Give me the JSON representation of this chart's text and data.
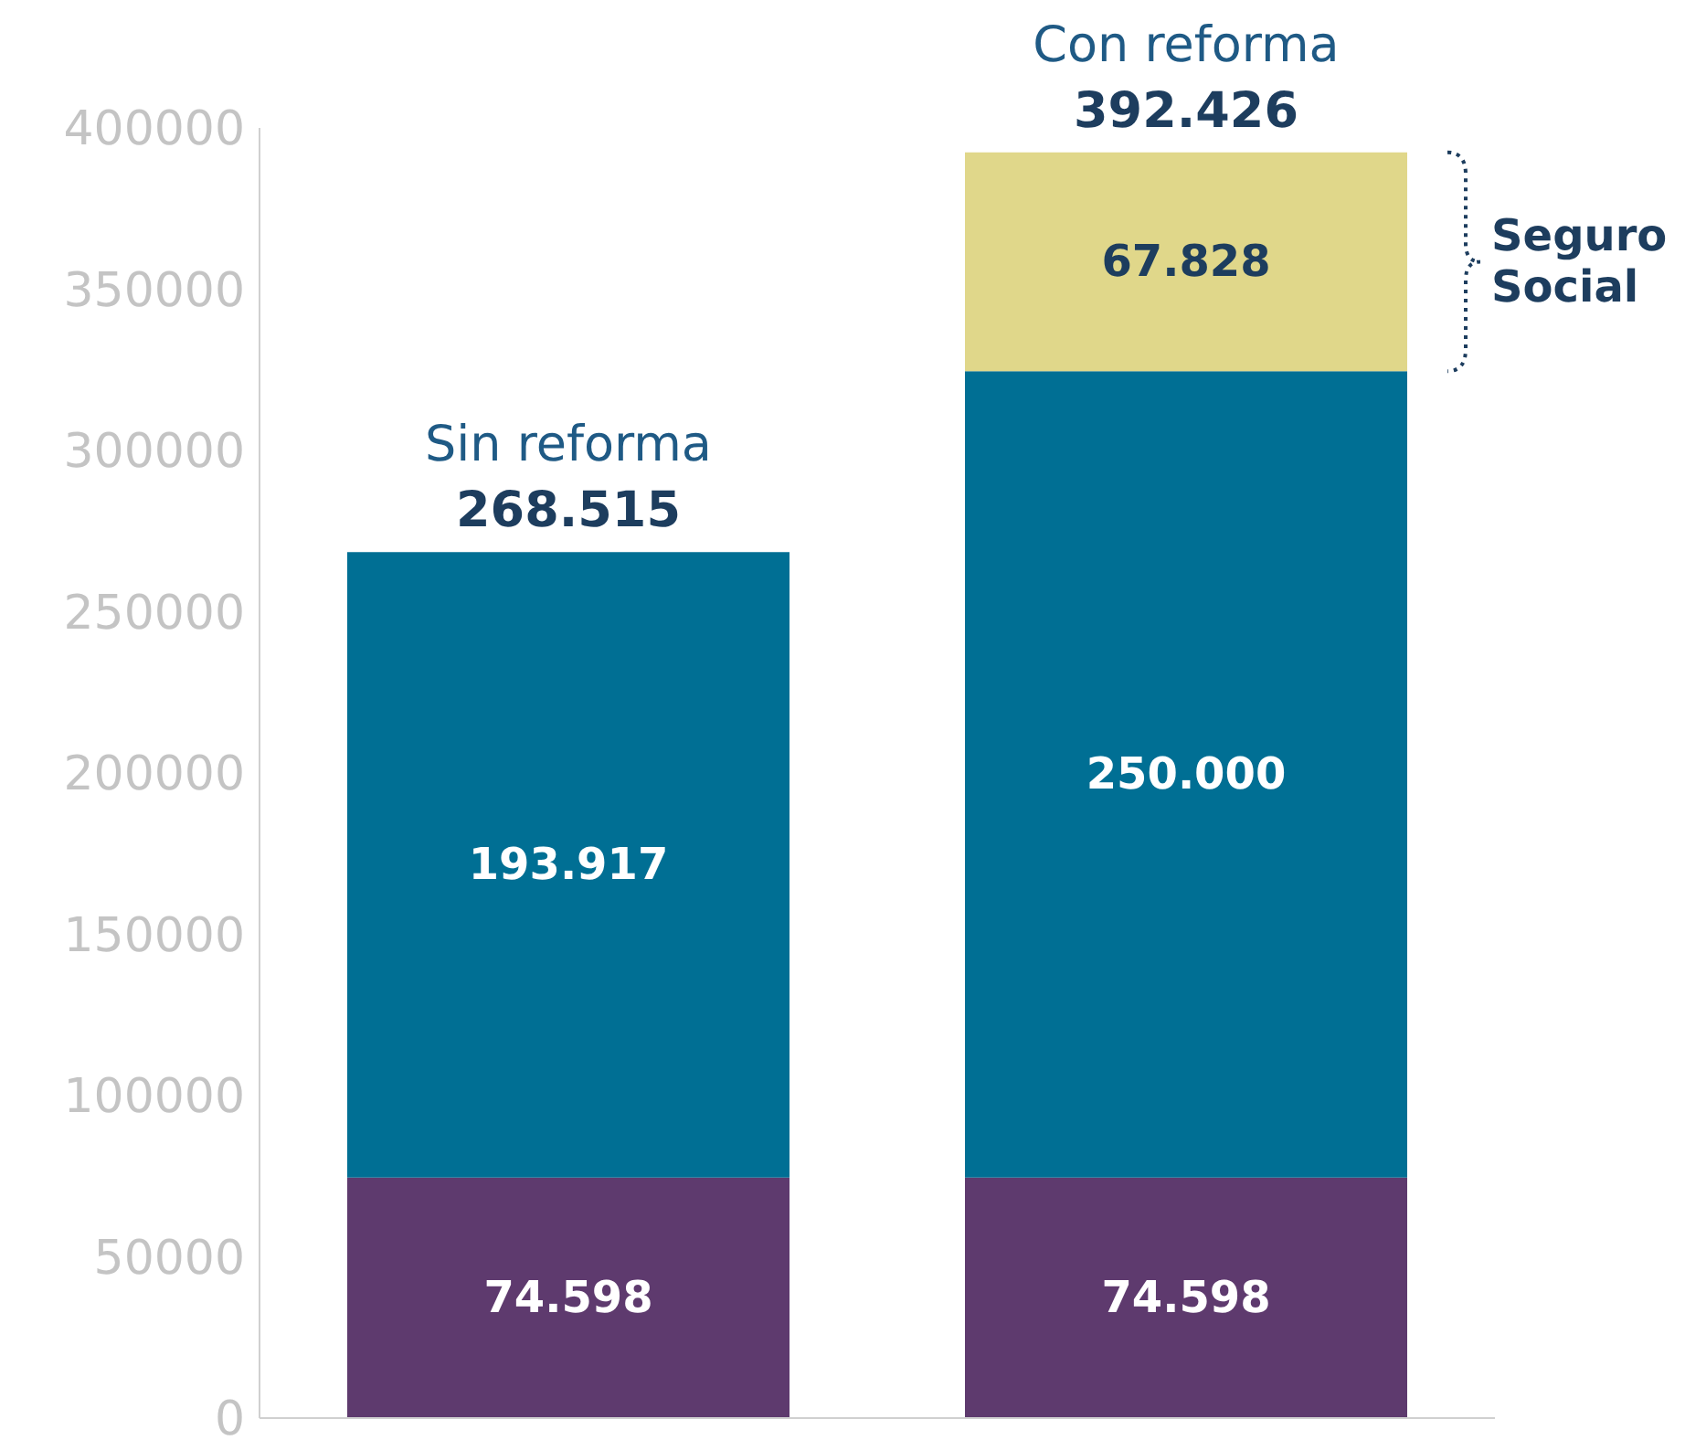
{
  "chart_data": {
    "type": "bar",
    "stacked": true,
    "categories": [
      "Sin reforma",
      "Con reforma"
    ],
    "series": [
      {
        "color": "#5e3a6e",
        "values": [
          74598,
          74598
        ],
        "value_labels": [
          "74.598",
          "74.598"
        ]
      },
      {
        "color": "#006f94",
        "values": [
          193917,
          250000
        ],
        "value_labels": [
          "193.917",
          "250.000"
        ]
      },
      {
        "name": "Seguro Social",
        "color": "#e0d78a",
        "values": [
          null,
          67828
        ],
        "value_labels": [
          null,
          "67.828"
        ]
      }
    ],
    "totals": [
      "268.515",
      "392.426"
    ],
    "ylim": [
      0,
      400000
    ],
    "yticks": [
      0,
      50000,
      100000,
      150000,
      200000,
      250000,
      300000,
      350000,
      400000
    ]
  }
}
